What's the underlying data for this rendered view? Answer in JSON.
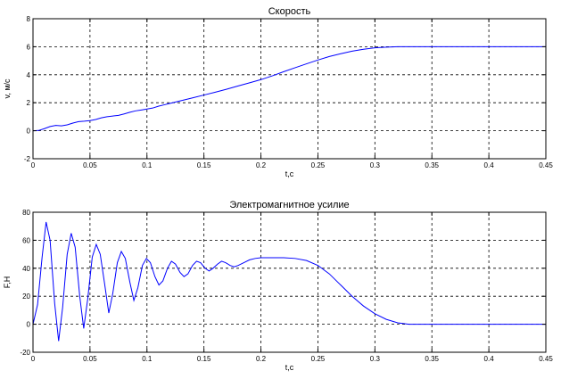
{
  "chart_data": [
    {
      "type": "line",
      "title": "Скорость",
      "xlabel": "t,c",
      "ylabel": "v, м/с",
      "xlim": [
        0,
        0.45
      ],
      "ylim": [
        -2,
        8
      ],
      "xticks": [
        0,
        0.05,
        0.1,
        0.15,
        0.2,
        0.25,
        0.3,
        0.35,
        0.4,
        0.45
      ],
      "yticks": [
        -2,
        0,
        2,
        4,
        6,
        8
      ],
      "xtick_labels": [
        "0",
        "0.05",
        "0.1",
        "0.15",
        "0.2",
        "0.25",
        "0.3",
        "0.35",
        "0.4",
        "0.45"
      ],
      "ytick_labels": [
        "-2",
        "0",
        "2",
        "4",
        "6",
        "8"
      ],
      "grid": true,
      "color": "#0000ff",
      "series": [
        {
          "x": [
            0,
            0.005,
            0.01,
            0.015,
            0.02,
            0.025,
            0.03,
            0.035,
            0.04,
            0.045,
            0.05,
            0.055,
            0.06,
            0.065,
            0.07,
            0.075,
            0.08,
            0.085,
            0.09,
            0.095,
            0.1,
            0.105,
            0.11,
            0.115,
            0.12,
            0.13,
            0.14,
            0.15,
            0.16,
            0.17,
            0.18,
            0.19,
            0.2,
            0.21,
            0.22,
            0.23,
            0.24,
            0.25,
            0.26,
            0.27,
            0.28,
            0.29,
            0.3,
            0.31,
            0.32,
            0.33,
            0.34,
            0.35,
            0.36,
            0.38,
            0.4,
            0.42,
            0.45
          ],
          "y": [
            0,
            0.02,
            0.15,
            0.3,
            0.38,
            0.35,
            0.42,
            0.55,
            0.65,
            0.68,
            0.72,
            0.8,
            0.92,
            1.0,
            1.05,
            1.1,
            1.2,
            1.32,
            1.42,
            1.48,
            1.55,
            1.62,
            1.75,
            1.85,
            1.95,
            2.15,
            2.35,
            2.55,
            2.75,
            2.97,
            3.2,
            3.42,
            3.65,
            3.92,
            4.22,
            4.5,
            4.78,
            5.05,
            5.3,
            5.5,
            5.68,
            5.82,
            5.92,
            5.97,
            6.0,
            6.0,
            6.0,
            6.0,
            6.0,
            6.0,
            6.0,
            6.0,
            6.0
          ]
        }
      ]
    },
    {
      "type": "line",
      "title": "Электромагнитное усилие",
      "xlabel": "t,c",
      "ylabel": "F,H",
      "xlim": [
        0,
        0.45
      ],
      "ylim": [
        -20,
        80
      ],
      "xticks": [
        0,
        0.05,
        0.1,
        0.15,
        0.2,
        0.25,
        0.3,
        0.35,
        0.4,
        0.45
      ],
      "yticks": [
        -20,
        0,
        20,
        40,
        60,
        80
      ],
      "xtick_labels": [
        "0",
        "0.05",
        "0.1",
        "0.15",
        "0.2",
        "0.25",
        "0.3",
        "0.35",
        "0.4",
        "0.45"
      ],
      "ytick_labels": [
        "-20",
        "0",
        "20",
        "40",
        "60",
        "80"
      ],
      "grid": true,
      "color": "#0000ff",
      "series": [
        {
          "x": [
            0,
            0.004,
            0.008,
            0.0115,
            0.015,
            0.019,
            0.0225,
            0.026,
            0.03,
            0.0335,
            0.037,
            0.041,
            0.0445,
            0.048,
            0.052,
            0.0555,
            0.059,
            0.063,
            0.0665,
            0.07,
            0.074,
            0.0775,
            0.081,
            0.085,
            0.0885,
            0.092,
            0.096,
            0.0995,
            0.103,
            0.107,
            0.1105,
            0.114,
            0.118,
            0.1215,
            0.125,
            0.129,
            0.1325,
            0.136,
            0.14,
            0.1435,
            0.147,
            0.151,
            0.1545,
            0.158,
            0.162,
            0.1655,
            0.169,
            0.173,
            0.1765,
            0.18,
            0.185,
            0.19,
            0.195,
            0.2,
            0.21,
            0.22,
            0.23,
            0.24,
            0.25,
            0.26,
            0.27,
            0.28,
            0.29,
            0.3,
            0.31,
            0.32,
            0.33,
            0.34,
            0.35,
            0.36,
            0.38,
            0.4,
            0.42,
            0.45
          ],
          "y": [
            0,
            14,
            48,
            73,
            60,
            15,
            -12,
            12,
            50,
            65,
            55,
            20,
            -3,
            18,
            48,
            57,
            50,
            28,
            8,
            22,
            44,
            52,
            47,
            30,
            17,
            26,
            42,
            47,
            44,
            34,
            28,
            31,
            40,
            45,
            43,
            37,
            34,
            36,
            42,
            45,
            44,
            40,
            38,
            40,
            43,
            45,
            44,
            42,
            41,
            42,
            44,
            46,
            47,
            47.5,
            47.5,
            47.5,
            47,
            45.5,
            42,
            36,
            28,
            20,
            13,
            7.5,
            3.5,
            1,
            0,
            0,
            0,
            0,
            0,
            0,
            0,
            0
          ]
        }
      ]
    }
  ]
}
